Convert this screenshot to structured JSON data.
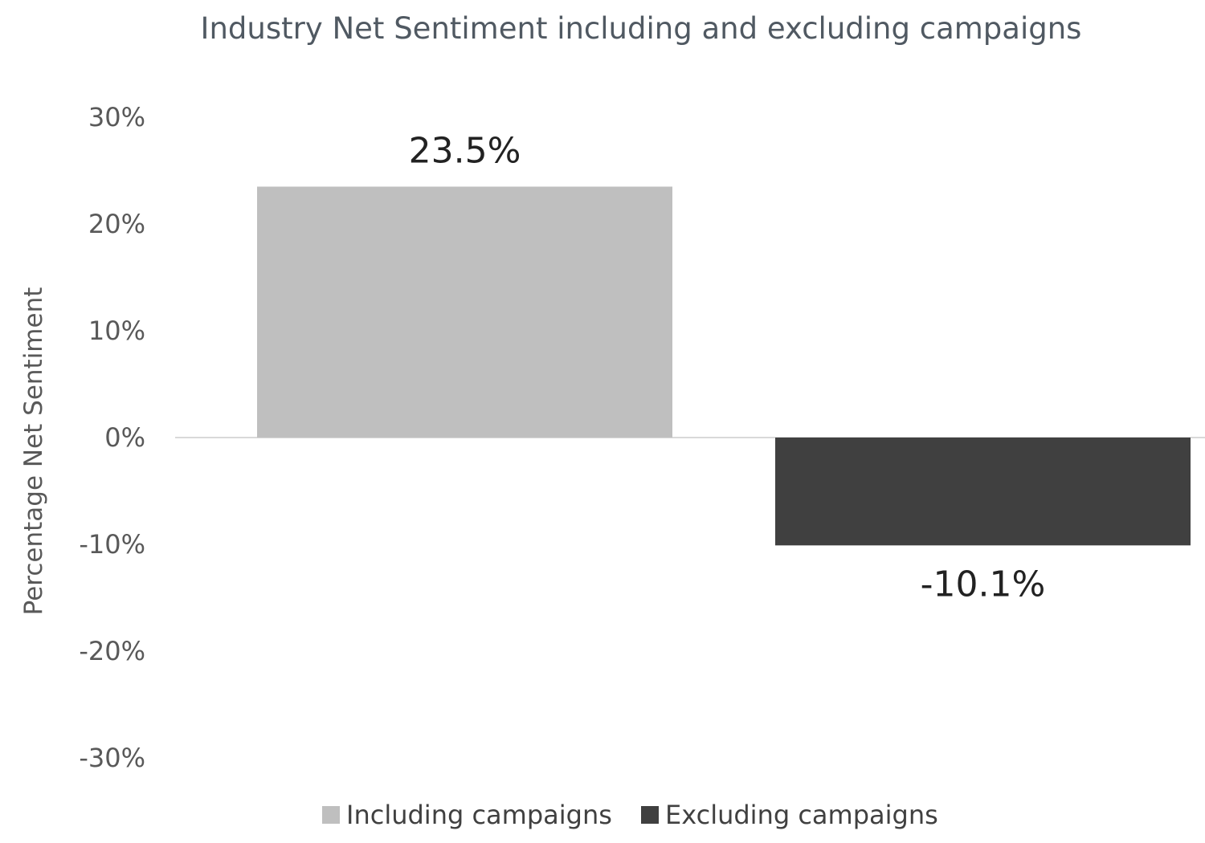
{
  "chart_data": {
    "type": "bar",
    "title": "Industry Net Sentiment including and excluding campaigns",
    "xlabel": "",
    "ylabel": "Percentage Net Sentiment",
    "ylim": [
      -30,
      30
    ],
    "yticks": [
      30,
      20,
      10,
      0,
      -10,
      -20,
      -30
    ],
    "ytick_labels": [
      "30%",
      "20%",
      "10%",
      "0%",
      "-10%",
      "-20%",
      "-30%"
    ],
    "grid": false,
    "legend_position": "bottom",
    "series": [
      {
        "name": "Including campaigns",
        "values": [
          23.5
        ],
        "color": "#bfbfbf",
        "label": "23.5%"
      },
      {
        "name": "Excluding campaigns",
        "values": [
          -10.1
        ],
        "color": "#404040",
        "label": "-10.1%"
      }
    ]
  }
}
